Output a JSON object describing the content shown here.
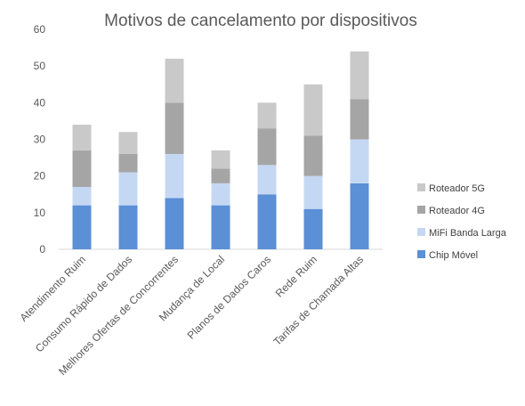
{
  "chart_data": {
    "type": "bar",
    "stacked": true,
    "title": "Motivos de cancelamento por dispositivos",
    "xlabel": "",
    "ylabel": "",
    "ylim": [
      0,
      60
    ],
    "yticks": [
      "0",
      "10",
      "20",
      "30",
      "40",
      "50",
      "60"
    ],
    "grid": false,
    "legend_position": "right",
    "categories": [
      "Atendimento Ruim",
      "Consumo Rápido de Dados",
      "Melhores Ofertas de Concorrentes",
      "Mudança de Local",
      "Planos de Dados Caros",
      "Rede Ruim",
      "Tarifas de Chamada Altas"
    ],
    "series": [
      {
        "name": "Chip Móvel",
        "color": "#5B8FD6",
        "values": [
          12,
          12,
          14,
          12,
          15,
          11,
          18
        ]
      },
      {
        "name": "MiFi Banda Larga",
        "color": "#C5D8F3",
        "values": [
          5,
          9,
          12,
          6,
          8,
          9,
          12
        ]
      },
      {
        "name": "Roteador 4G",
        "color": "#A5A5A5",
        "values": [
          10,
          5,
          14,
          4,
          10,
          11,
          11
        ]
      },
      {
        "name": "Roteador 5G",
        "color": "#C9C9C9",
        "values": [
          7,
          6,
          12,
          5,
          7,
          14,
          13
        ]
      }
    ]
  }
}
